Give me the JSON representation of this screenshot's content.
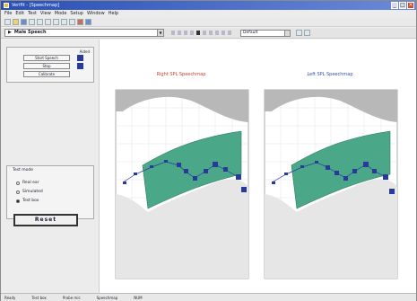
{
  "window": {
    "title": "Verifit - [Speechmap]"
  },
  "menu": {
    "items": [
      "File",
      "Edit",
      "Test",
      "View",
      "Mode",
      "Setup",
      "Window",
      "Help"
    ]
  },
  "toolbar": {
    "icons": [
      "new-icon",
      "open-icon",
      "save-icon",
      "print-icon",
      "cut-icon",
      "copy-icon",
      "paste-icon",
      "undo-icon",
      "redo-icon",
      "zoom-icon",
      "help-icon"
    ]
  },
  "session": {
    "label": "Male Speech"
  },
  "target": {
    "selected": "Default"
  },
  "sidebar": {
    "panel_label": "Aided",
    "buttons": [
      "Start Speech",
      "Stop",
      "Calibrate"
    ],
    "mode": {
      "legend": "Test mode",
      "options": [
        "Real ear",
        "Simulated",
        "Test box"
      ],
      "selected_index": 2
    },
    "reset_label": "Reset"
  },
  "charts": [
    {
      "title": "Right SPL Speechmap",
      "title_color": "#d03a2a"
    },
    {
      "title": "Left SPL Speechmap",
      "title_color": "#3a4ab0"
    }
  ],
  "colors": {
    "band": "#4aa888",
    "band_edge": "#2e7a60",
    "threshold": "#b8b8b8",
    "marker": "#2a3a9c",
    "grid": "#dde2ea"
  },
  "statusbar": {
    "items": [
      "Ready",
      "Test box",
      "Probe mic",
      "Speechmap",
      "NUM"
    ]
  }
}
